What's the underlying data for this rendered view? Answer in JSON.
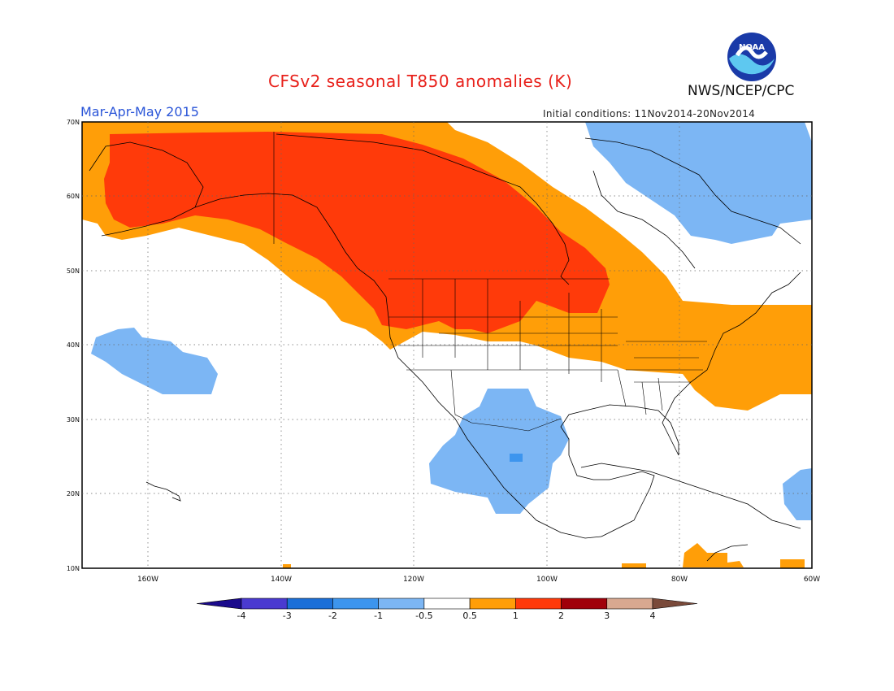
{
  "header": {
    "title": "CFSv2 seasonal T850 anomalies (K)",
    "org": "NWS/NCEP/CPC",
    "season": "Mar-Apr-May 2015",
    "initial_conditions": "Initial conditions: 11Nov2014-20Nov2014",
    "logo_text": "NOAA"
  },
  "map": {
    "lat_labels": [
      "70N",
      "60N",
      "50N",
      "40N",
      "30N",
      "20N",
      "10N"
    ],
    "lon_labels": [
      "160W",
      "140W",
      "120W",
      "100W",
      "80W",
      "60W"
    ],
    "regions": [
      {
        "name": "warm-anomaly-1-2K",
        "level": "1 to 2",
        "color": "#ff3a0a",
        "area": "Alaska, western and central Canada, northern US Plains"
      },
      {
        "name": "warm-anomaly-0.5-1K",
        "level": "0.5 to 1",
        "color": "#ff9e08",
        "area": "Ring around core, Great Lakes, US East Coast, western Atlantic"
      },
      {
        "name": "cool-anomaly-Greenland",
        "level": "-1 to -0.5",
        "color": "#7cb6f4",
        "area": "Eastern Canadian Arctic, Greenland, Labrador"
      },
      {
        "name": "cool-anomaly-Mexico",
        "level": "-1 to -0.5",
        "color": "#7cb6f4",
        "area": "Mexico and US Southwest"
      },
      {
        "name": "cool-anomaly-Pacific",
        "level": "-1 to -0.5",
        "color": "#7cb6f4",
        "area": "Central North Pacific"
      },
      {
        "name": "cool-anomaly-Caribbean",
        "level": "-1 to -0.5",
        "color": "#7cb6f4",
        "area": "Eastern Caribbean"
      }
    ]
  },
  "colorbar": {
    "colors": [
      "#1a0a8c",
      "#4a3ad0",
      "#1b6fd8",
      "#3d95ee",
      "#7cb6f4",
      "#ffffff",
      "#ff9e08",
      "#ff3a0a",
      "#a0000a",
      "#d8a890",
      "#7a4a3a"
    ],
    "labels": [
      "-4",
      "-3",
      "-2",
      "-1",
      "-0.5",
      "0.5",
      "1",
      "2",
      "3",
      "4"
    ]
  }
}
